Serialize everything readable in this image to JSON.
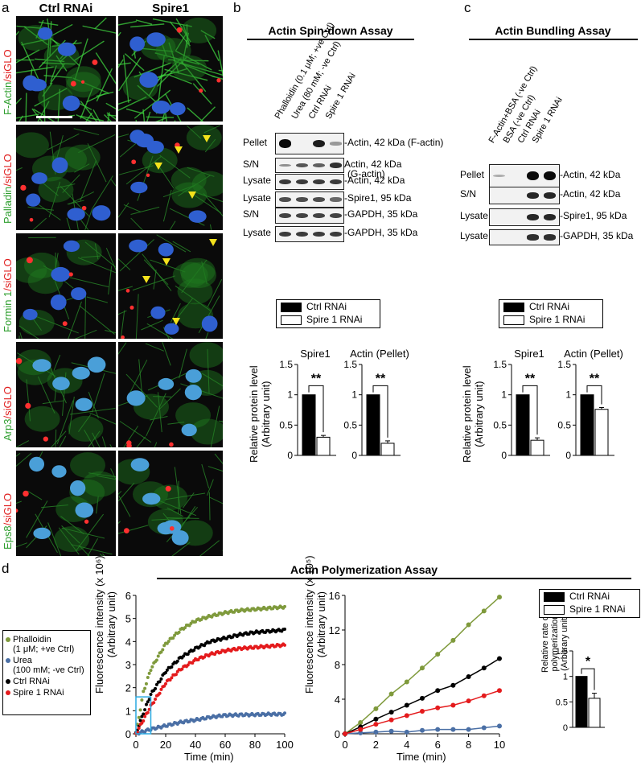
{
  "panel_a": {
    "letter": "a",
    "col_headers": [
      "Ctrl RNAi",
      "Spire1"
    ],
    "rows": [
      {
        "green": "F-Actin",
        "red": "/siGLO"
      },
      {
        "green": "Palladin",
        "red": "/siGLO"
      },
      {
        "green": "Formin 1",
        "red": "/siGLO"
      },
      {
        "green": "Arp3",
        "red": "/siGLO"
      },
      {
        "green": "Eps8",
        "red": "/siGLO"
      }
    ]
  },
  "panel_b": {
    "letter": "b",
    "title": "Actin Spin-down Assay",
    "lanes": [
      "Phalloidin (0.1 μM; +ve Ctrl)",
      "Urea (80 mM; -ve Ctrl)",
      "Ctrl RNAi",
      "Spire 1 RNAi"
    ],
    "rows": [
      {
        "label": "Pellet",
        "band": "-Actin, 42 kDa (F-actin)"
      },
      {
        "label": "S/N",
        "band": "Actin, 42 kDa",
        "band2": "(G-actin)"
      },
      {
        "label": "Lysate",
        "band": "-Actin, 42 kDa"
      },
      {
        "label": "Lysate",
        "band": "-Spire1, 95 kDa"
      },
      {
        "label": "S/N",
        "band": "-GAPDH, 35 kDa"
      },
      {
        "label": "Lysate",
        "band": "-GAPDH, 35 kDa"
      }
    ]
  },
  "panel_c": {
    "letter": "c",
    "title": "Actin Bundling Assay",
    "lanes": [
      "F-Actin+BSA (-ve Ctrl)",
      "BSA (-ve Ctrl)",
      "Ctrl RNAi",
      "Spire 1 RNAi"
    ],
    "rows": [
      {
        "label": "Pellet",
        "band": "-Actin, 42 kDa"
      },
      {
        "label": "S/N",
        "band": "-Actin, 42 kDa"
      },
      {
        "label": "Lysate",
        "band": "-Spire1, 95 kDa"
      },
      {
        "label": "Lysate",
        "band": "-GAPDH, 35 kDa"
      }
    ]
  },
  "bar_legend": {
    "ctrl": "Ctrl RNAi",
    "spire": "Spire 1 RNAi"
  },
  "ylabel_rel": [
    "Relative protein level",
    "(Arbitrary unit)"
  ],
  "significance": {
    "double": "**",
    "single": "*"
  },
  "panel_d": {
    "letter": "d",
    "title": "Actin Polymerization Assay",
    "legend": [
      {
        "label": "Phalloidin",
        "label2": "(1 μM; +ve Ctrl)",
        "color": "#7f9a3c"
      },
      {
        "label": "Urea",
        "label2": "(100 mM; -ve Ctrl)",
        "color": "#4a6fa5"
      },
      {
        "label": "Ctrl RNAi",
        "label2": "",
        "color": "#000000"
      },
      {
        "label": "Spire 1 RNAi",
        "label2": "",
        "color": "#e41a1c"
      }
    ],
    "ylabel_left": "Fluorescence intensity (x 10⁶)",
    "ylabel_left2": "(Arbitrary unit)",
    "ylabel_mid": "Fluorescence intensity (x 10⁵)",
    "ylabel_mid2": "(Arbitrary unit)",
    "xlabel": "Time (min)",
    "ylabel_rate": [
      "Relative rate of",
      "polymerization",
      "(Arbitrary unit)"
    ]
  },
  "chart_data": [
    {
      "type": "bar",
      "id": "b-spire1",
      "title": "Spire1",
      "categories": [
        "Ctrl RNAi",
        "Spire 1 RNAi"
      ],
      "values": [
        1.0,
        0.3
      ],
      "errors": [
        0,
        0.03
      ],
      "ylim": [
        0,
        1.5
      ],
      "yticks": [
        "0",
        "0.5",
        "1",
        "1.5"
      ],
      "sig": "**"
    },
    {
      "type": "bar",
      "id": "b-actin",
      "title": "Actin (Pellet)",
      "categories": [
        "Ctrl RNAi",
        "Spire 1 RNAi"
      ],
      "values": [
        1.0,
        0.2
      ],
      "errors": [
        0,
        0.04
      ],
      "ylim": [
        0,
        1.5
      ],
      "yticks": [
        "0",
        "0.5",
        "1",
        "1.5"
      ],
      "sig": "**"
    },
    {
      "type": "bar",
      "id": "c-spire1",
      "title": "Spire1",
      "categories": [
        "Ctrl RNAi",
        "Spire 1 RNAi"
      ],
      "values": [
        1.0,
        0.25
      ],
      "errors": [
        0,
        0.04
      ],
      "ylim": [
        0,
        1.5
      ],
      "yticks": [
        "0",
        "0.5",
        "1",
        "1.5"
      ],
      "sig": "**"
    },
    {
      "type": "bar",
      "id": "c-actin",
      "title": "Actin (Pellet)",
      "categories": [
        "Ctrl RNAi",
        "Spire 1 RNAi"
      ],
      "values": [
        1.0,
        0.76
      ],
      "errors": [
        0,
        0.03
      ],
      "ylim": [
        0,
        1.5
      ],
      "yticks": [
        "0",
        "0.5",
        "1",
        "1.5"
      ],
      "sig": "**"
    },
    {
      "type": "scatter",
      "id": "d-time100",
      "xlabel": "Time (min)",
      "xlim": [
        0,
        100
      ],
      "ylim": [
        0,
        6
      ],
      "xticks": [
        "0",
        "20",
        "40",
        "60",
        "80",
        "100"
      ],
      "yticks": [
        "0",
        "1",
        "2",
        "3",
        "4",
        "5",
        "6"
      ],
      "series": [
        {
          "name": "Phalloidin (1 μM; +ve Ctrl)",
          "color": "#7f9a3c",
          "x": [
            0,
            5,
            10,
            20,
            30,
            40,
            50,
            60,
            70,
            80,
            90,
            100
          ],
          "y": [
            0,
            1.8,
            2.8,
            3.9,
            4.5,
            4.9,
            5.1,
            5.25,
            5.35,
            5.4,
            5.45,
            5.5
          ]
        },
        {
          "name": "Urea (100 mM; -ve Ctrl)",
          "color": "#4a6fa5",
          "x": [
            0,
            10,
            20,
            30,
            40,
            50,
            60,
            70,
            80,
            90,
            100
          ],
          "y": [
            0,
            0.2,
            0.35,
            0.5,
            0.6,
            0.72,
            0.8,
            0.82,
            0.83,
            0.85,
            0.85
          ]
        },
        {
          "name": "Ctrl RNAi",
          "color": "#000000",
          "x": [
            0,
            5,
            10,
            20,
            30,
            40,
            50,
            60,
            70,
            80,
            90,
            100
          ],
          "y": [
            0,
            0.9,
            1.7,
            2.7,
            3.3,
            3.7,
            4.0,
            4.15,
            4.3,
            4.4,
            4.45,
            4.5
          ]
        },
        {
          "name": "Spire 1 RNAi",
          "color": "#e41a1c",
          "x": [
            0,
            5,
            10,
            20,
            30,
            40,
            50,
            60,
            70,
            80,
            90,
            100
          ],
          "y": [
            0,
            0.6,
            1.2,
            2.2,
            2.8,
            3.2,
            3.45,
            3.6,
            3.7,
            3.75,
            3.8,
            3.85
          ]
        }
      ]
    },
    {
      "type": "line",
      "id": "d-time10",
      "xlabel": "Time (min)",
      "xlim": [
        0,
        10
      ],
      "ylim": [
        0,
        16
      ],
      "xticks": [
        "0",
        "2",
        "4",
        "6",
        "8",
        "10"
      ],
      "yticks": [
        "0",
        "4",
        "8",
        "12",
        "16"
      ],
      "series": [
        {
          "name": "Phalloidin (1 μM; +ve Ctrl)",
          "color": "#7f9a3c",
          "x": [
            0,
            1,
            2,
            3,
            4,
            5,
            6,
            7,
            8,
            9,
            10
          ],
          "y": [
            0,
            1.3,
            2.9,
            4.6,
            6.0,
            7.6,
            9.2,
            10.8,
            12.6,
            14.2,
            15.8
          ]
        },
        {
          "name": "Urea (100 mM; -ve Ctrl)",
          "color": "#4a6fa5",
          "x": [
            0,
            1,
            2,
            3,
            4,
            5,
            6,
            7,
            8,
            9,
            10
          ],
          "y": [
            0,
            0.1,
            0.2,
            0.3,
            0.2,
            0.4,
            0.5,
            0.5,
            0.5,
            0.7,
            0.9
          ]
        },
        {
          "name": "Ctrl RNAi",
          "color": "#000000",
          "x": [
            0,
            1,
            2,
            3,
            4,
            5,
            6,
            7,
            8,
            9,
            10
          ],
          "y": [
            0,
            0.8,
            1.7,
            2.5,
            3.3,
            4.1,
            5.0,
            5.6,
            6.6,
            7.6,
            8.7
          ]
        },
        {
          "name": "Spire 1 RNAi",
          "color": "#e41a1c",
          "x": [
            0,
            1,
            2,
            3,
            4,
            5,
            6,
            7,
            8,
            9,
            10
          ],
          "y": [
            0,
            0.5,
            1.1,
            1.6,
            2.1,
            2.6,
            3.0,
            3.3,
            3.8,
            4.4,
            5.0
          ]
        }
      ]
    },
    {
      "type": "bar",
      "id": "d-rate",
      "categories": [
        "Ctrl RNAi",
        "Spire 1 RNAi"
      ],
      "values": [
        1.0,
        0.57
      ],
      "errors": [
        0,
        0.1
      ],
      "ylim": [
        0,
        1.5
      ],
      "yticks": [
        "0",
        "0.5",
        "1",
        "1.5"
      ],
      "sig": "*"
    }
  ]
}
